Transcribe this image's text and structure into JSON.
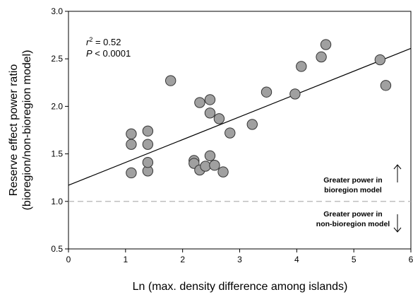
{
  "chart_data": {
    "type": "scatter",
    "xlabel": "Ln (max. density difference among islands)",
    "ylabel_lines": [
      "Reserve effect power ratio",
      "(bioregion/non-bioregion model)"
    ],
    "xlim": [
      0,
      6
    ],
    "ylim": [
      0.5,
      3.0
    ],
    "x_ticks": [
      0,
      1,
      2,
      3,
      4,
      5,
      6
    ],
    "y_ticks": [
      0.5,
      1.0,
      1.5,
      2.0,
      2.5,
      3.0
    ],
    "x_tick_labels": [
      "0",
      "1",
      "2",
      "3",
      "4",
      "5",
      "6"
    ],
    "y_tick_labels": [
      "0.5",
      "1.0",
      "1.5",
      "2.0",
      "2.5",
      "3.0"
    ],
    "grid": false,
    "stats": {
      "r_label": "r",
      "r_sup": "2",
      "r_value": " = 0.52",
      "p_label": "P",
      "p_value": " < 0.0001"
    },
    "points": [
      {
        "x": 1.1,
        "y": 1.3
      },
      {
        "x": 1.1,
        "y": 1.6
      },
      {
        "x": 1.1,
        "y": 1.71
      },
      {
        "x": 1.39,
        "y": 1.32
      },
      {
        "x": 1.39,
        "y": 1.41
      },
      {
        "x": 1.39,
        "y": 1.6
      },
      {
        "x": 1.39,
        "y": 1.74
      },
      {
        "x": 1.79,
        "y": 2.27
      },
      {
        "x": 2.2,
        "y": 1.43
      },
      {
        "x": 2.2,
        "y": 1.4
      },
      {
        "x": 2.3,
        "y": 1.33
      },
      {
        "x": 2.3,
        "y": 2.04
      },
      {
        "x": 2.4,
        "y": 1.37
      },
      {
        "x": 2.48,
        "y": 1.48
      },
      {
        "x": 2.48,
        "y": 1.93
      },
      {
        "x": 2.48,
        "y": 2.07
      },
      {
        "x": 2.56,
        "y": 1.38
      },
      {
        "x": 2.64,
        "y": 1.87
      },
      {
        "x": 2.71,
        "y": 1.31
      },
      {
        "x": 2.83,
        "y": 1.72
      },
      {
        "x": 3.22,
        "y": 1.81
      },
      {
        "x": 3.47,
        "y": 2.15
      },
      {
        "x": 3.97,
        "y": 2.13
      },
      {
        "x": 4.08,
        "y": 2.42
      },
      {
        "x": 4.43,
        "y": 2.52
      },
      {
        "x": 4.51,
        "y": 2.65
      },
      {
        "x": 5.46,
        "y": 2.49
      },
      {
        "x": 5.56,
        "y": 2.22
      }
    ],
    "regression_line": {
      "x": [
        0,
        6
      ],
      "y": [
        1.17,
        2.61
      ]
    },
    "reference_line": {
      "y": 1.0,
      "color": "#aaaaaa"
    },
    "annotations": {
      "upper": [
        "Greater power in",
        "bioregion model"
      ],
      "lower": [
        "Greater power in",
        "non-bioregion model"
      ]
    },
    "marker_fill": "#a0a0a0",
    "marker_stroke": "#333333"
  }
}
